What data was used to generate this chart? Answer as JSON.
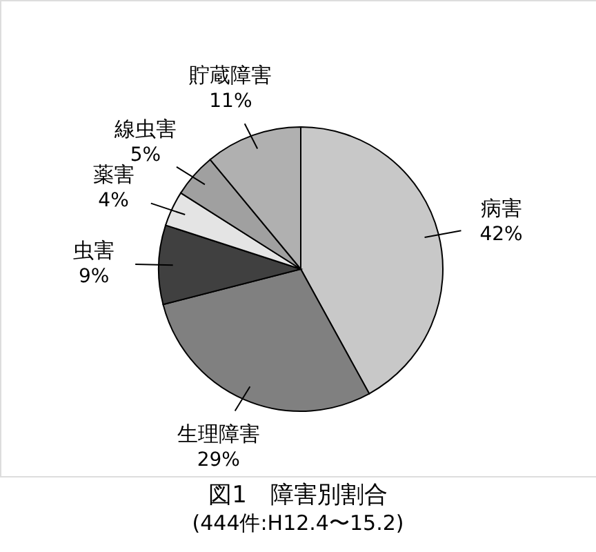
{
  "chart_data": {
    "type": "pie",
    "title": "図1　障害別割合",
    "subtitle": "(444件:H12.4〜15.2)",
    "categories": [
      "病害",
      "生理障害",
      "虫害",
      "薬害",
      "線虫害",
      "貯蔵障害"
    ],
    "values": [
      42,
      29,
      9,
      4,
      5,
      11
    ],
    "value_labels": [
      "42%",
      "29%",
      "9%",
      "4%",
      "5%",
      "11%"
    ],
    "colors": [
      "#c8c8c8",
      "#808080",
      "#404040",
      "#e4e4e4",
      "#a0a0a0",
      "#b0b0b0"
    ]
  }
}
